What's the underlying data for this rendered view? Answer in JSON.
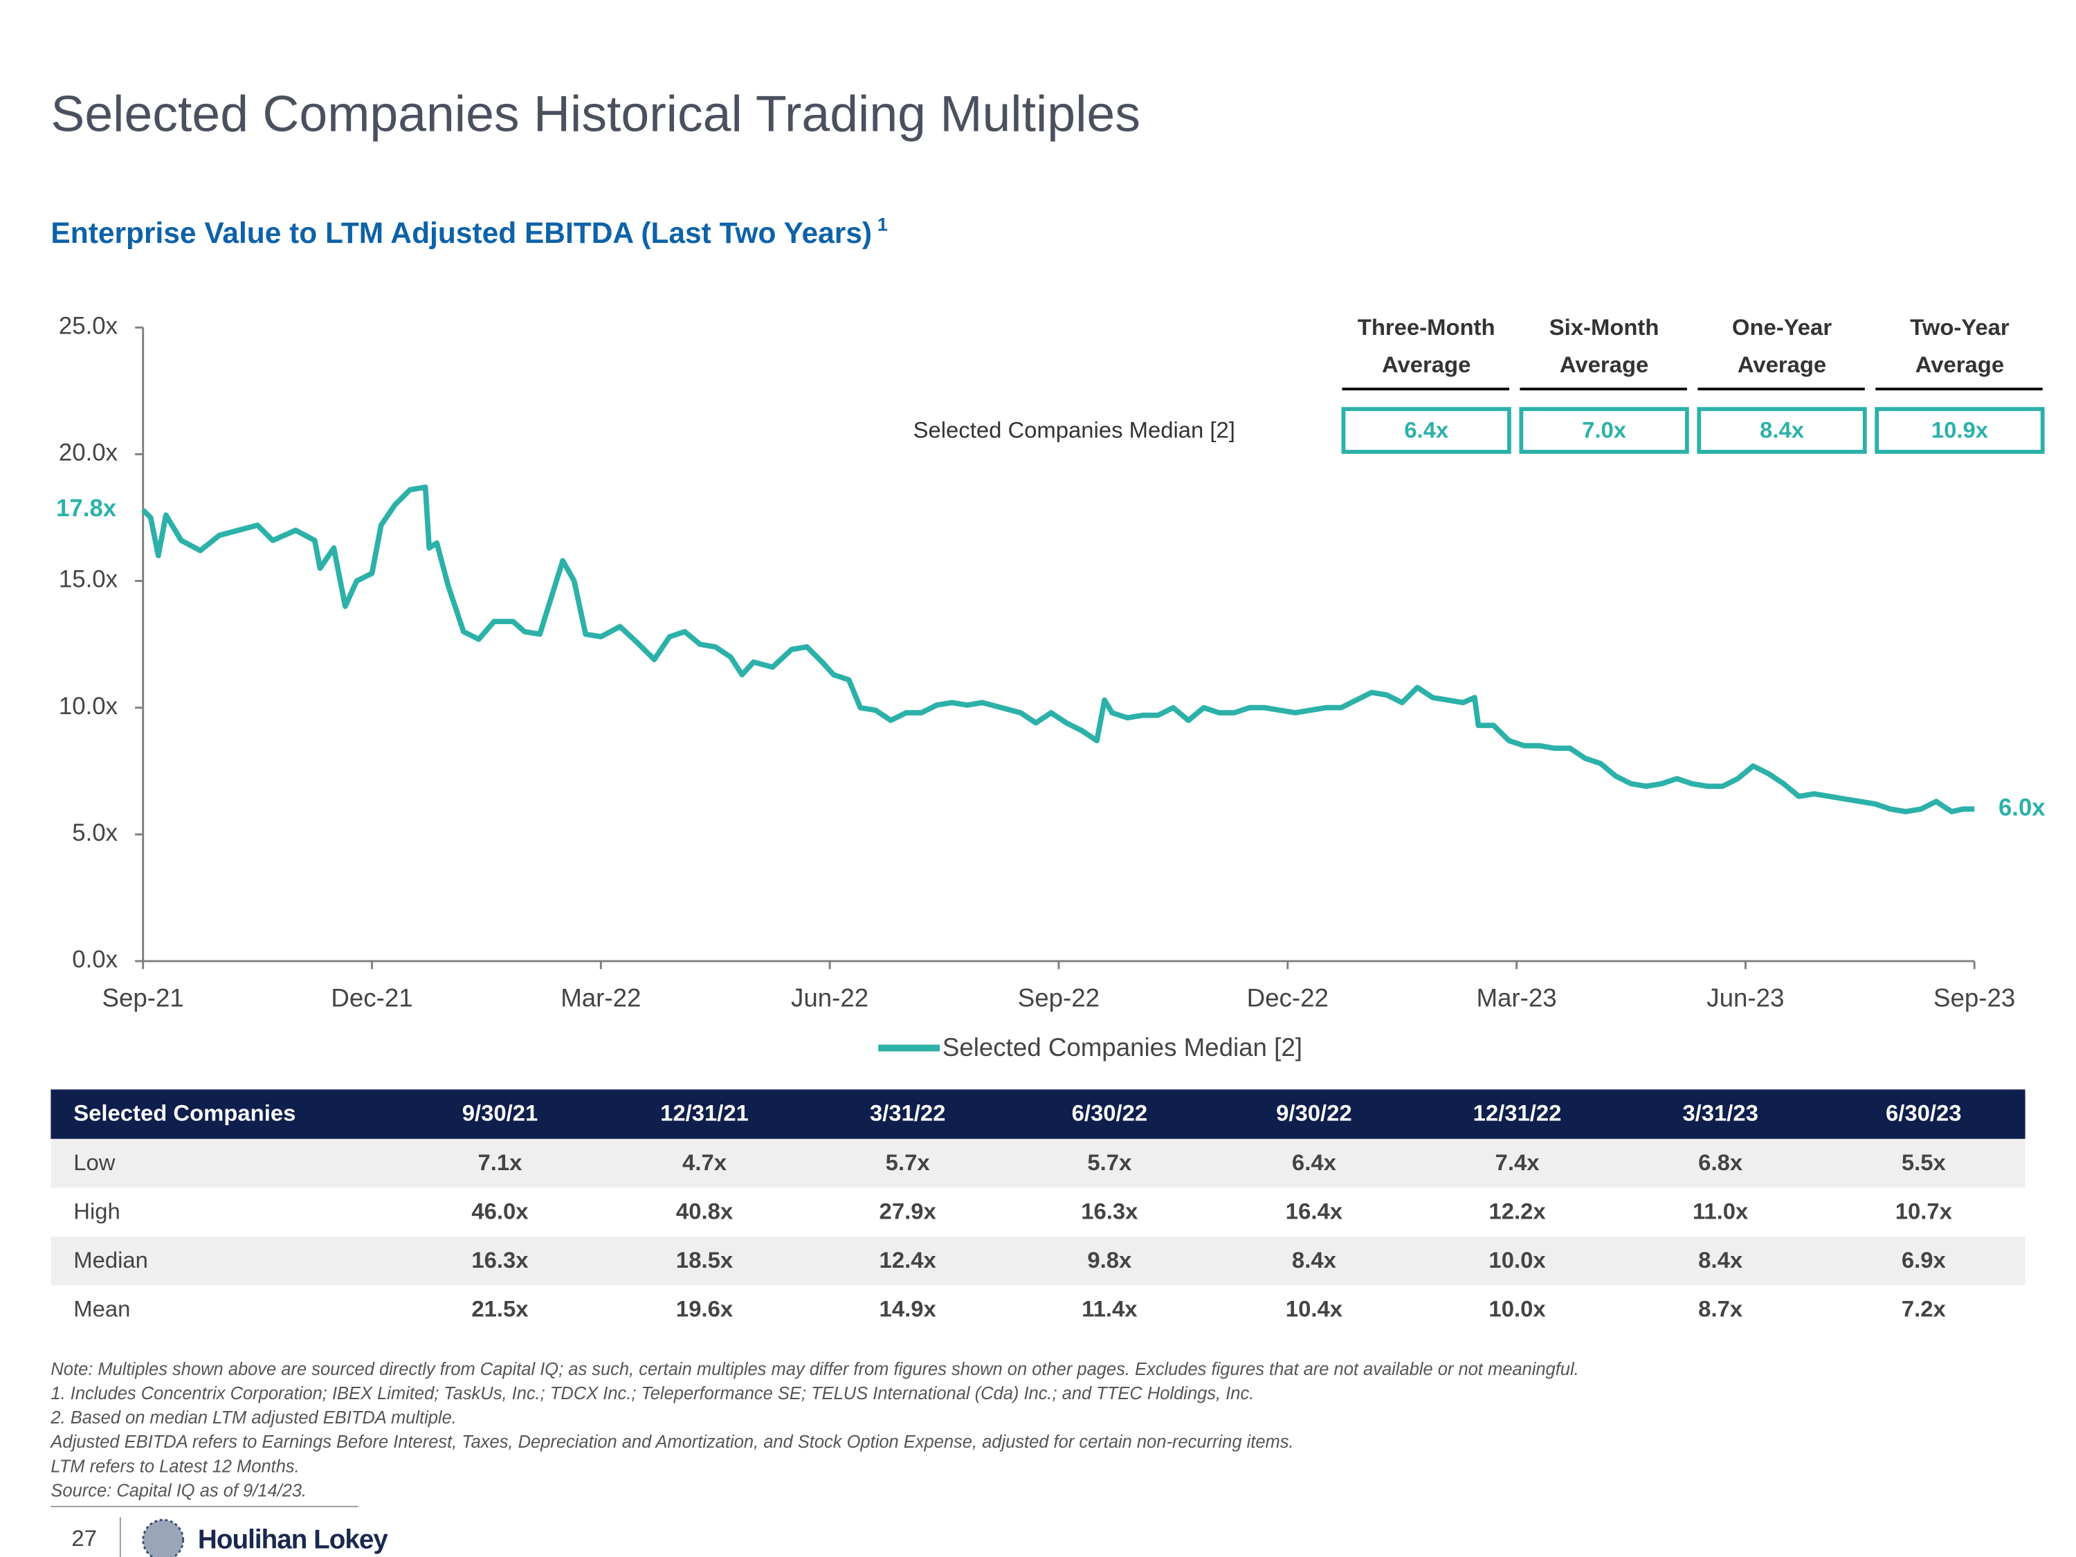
{
  "title": "Selected Companies Historical Trading Multiples",
  "subtitle": "Enterprise Value to LTM Adjusted EBITDA (Last Two Years)",
  "subtitle_note": "1",
  "chart_data": {
    "type": "line",
    "x": [
      0,
      0.1,
      0.2,
      0.3,
      0.5,
      0.75,
      1.0,
      1.25,
      1.5,
      1.7,
      2.0,
      2.25,
      2.32,
      2.5,
      2.65,
      2.8,
      3.0,
      3.12,
      3.3,
      3.5,
      3.7,
      3.75,
      3.85,
      4.0,
      4.2,
      4.4,
      4.6,
      4.85,
      5.0,
      5.2,
      5.5,
      5.65,
      5.8,
      6.0,
      6.25,
      6.5,
      6.7,
      6.9,
      7.1,
      7.3,
      7.5,
      7.7,
      7.85,
      8.0,
      8.25,
      8.5,
      8.7,
      8.9,
      9.05,
      9.25,
      9.4,
      9.6,
      9.8,
      10.0,
      10.2,
      10.4,
      10.6,
      10.8,
      11.0,
      11.25,
      11.5,
      11.7,
      11.9,
      12.1,
      12.3,
      12.5,
      12.6,
      12.7,
      12.9,
      13.1,
      13.3,
      13.5,
      13.7,
      13.9,
      14.1,
      14.3,
      14.5,
      14.7,
      14.9,
      15.1,
      15.3,
      15.5,
      15.7,
      15.9,
      16.1,
      16.3,
      16.5,
      16.7,
      16.9,
      17.1,
      17.3,
      17.45,
      17.5,
      17.7,
      17.9,
      18.1,
      18.3,
      18.5,
      18.7,
      18.9,
      19.1,
      19.3,
      19.5,
      19.7,
      19.9,
      20.1,
      20.3,
      20.5,
      20.7,
      20.9,
      21.1,
      21.3,
      21.5,
      21.7,
      21.9,
      22.1,
      22.3,
      22.5,
      22.7,
      22.9,
      23.1,
      23.3,
      23.5,
      23.7,
      23.85,
      24.0
    ],
    "series": [
      {
        "name": "Selected Companies Median [2]",
        "color": "#2cb1a9",
        "values": [
          17.8,
          17.5,
          16.0,
          17.6,
          16.6,
          16.2,
          16.8,
          17.0,
          17.2,
          16.6,
          17.0,
          16.6,
          15.5,
          16.3,
          14.0,
          15.0,
          15.3,
          17.2,
          18.0,
          18.6,
          18.7,
          16.3,
          16.5,
          14.8,
          13.0,
          12.7,
          13.4,
          13.4,
          13.0,
          12.9,
          15.8,
          15.0,
          12.9,
          12.8,
          13.2,
          12.5,
          11.9,
          12.8,
          13.0,
          12.5,
          12.4,
          12.0,
          11.3,
          11.8,
          11.6,
          12.3,
          12.4,
          11.8,
          11.3,
          11.1,
          10.0,
          9.9,
          9.5,
          9.8,
          9.8,
          10.1,
          10.2,
          10.1,
          10.2,
          10.0,
          9.8,
          9.4,
          9.8,
          9.4,
          9.1,
          8.7,
          10.3,
          9.8,
          9.6,
          9.7,
          9.7,
          10.0,
          9.5,
          10.0,
          9.8,
          9.8,
          10.0,
          10.0,
          9.9,
          9.8,
          9.9,
          10.0,
          10.0,
          10.3,
          10.6,
          10.5,
          10.2,
          10.8,
          10.4,
          10.3,
          10.2,
          10.4,
          9.3,
          9.3,
          8.7,
          8.5,
          8.5,
          8.4,
          8.4,
          8.0,
          7.8,
          7.3,
          7.0,
          6.9,
          7.0,
          7.2,
          7.0,
          6.9,
          6.9,
          7.2,
          7.7,
          7.4,
          7.0,
          6.5,
          6.6,
          6.5,
          6.4,
          6.3,
          6.2,
          6.0,
          5.9,
          6.0,
          6.3,
          5.9,
          6.0,
          6.0
        ]
      }
    ],
    "start_label": "17.8x",
    "end_label": "6.0x",
    "xlim": [
      0,
      24
    ],
    "xticks": [
      {
        "value": 0,
        "label": "Sep-21"
      },
      {
        "value": 3,
        "label": "Dec-21"
      },
      {
        "value": 6,
        "label": "Mar-22"
      },
      {
        "value": 9,
        "label": "Jun-22"
      },
      {
        "value": 12,
        "label": "Sep-22"
      },
      {
        "value": 15,
        "label": "Dec-22"
      },
      {
        "value": 18,
        "label": "Mar-23"
      },
      {
        "value": 21,
        "label": "Jun-23"
      },
      {
        "value": 24,
        "label": "Sep-23"
      }
    ],
    "ylim": [
      0,
      25
    ],
    "yticks": [
      {
        "value": 0,
        "label": "0.0x"
      },
      {
        "value": 5,
        "label": "5.0x"
      },
      {
        "value": 10,
        "label": "10.0x"
      },
      {
        "value": 15,
        "label": "15.0x"
      },
      {
        "value": 20,
        "label": "20.0x"
      },
      {
        "value": 25,
        "label": "25.0x"
      }
    ],
    "grid": false,
    "legend": "bottom"
  },
  "averages": {
    "row_label": "Selected Companies Median [2]",
    "headers": [
      [
        "Three-Month",
        "Average"
      ],
      [
        "Six-Month",
        "Average"
      ],
      [
        "One-Year",
        "Average"
      ],
      [
        "Two-Year",
        "Average"
      ]
    ],
    "values": [
      "6.4x",
      "7.0x",
      "8.4x",
      "10.9x"
    ]
  },
  "table": {
    "header": [
      "Selected Companies",
      "9/30/21",
      "12/31/21",
      "3/31/22",
      "6/30/22",
      "9/30/22",
      "12/31/22",
      "3/31/23",
      "6/30/23"
    ],
    "rows": [
      [
        "Low",
        "7.1x",
        "4.7x",
        "5.7x",
        "5.7x",
        "6.4x",
        "7.4x",
        "6.8x",
        "5.5x"
      ],
      [
        "High",
        "46.0x",
        "40.8x",
        "27.9x",
        "16.3x",
        "16.4x",
        "12.2x",
        "11.0x",
        "10.7x"
      ],
      [
        "Median",
        "16.3x",
        "18.5x",
        "12.4x",
        "9.8x",
        "8.4x",
        "10.0x",
        "8.4x",
        "6.9x"
      ],
      [
        "Mean",
        "21.5x",
        "19.6x",
        "14.9x",
        "11.4x",
        "10.4x",
        "10.0x",
        "8.7x",
        "7.2x"
      ]
    ]
  },
  "notes": [
    "Note: Multiples shown above are sourced directly from Capital IQ; as such, certain multiples may differ from figures shown on other pages. Excludes figures that are not available or not meaningful.",
    "1.  Includes Concentrix Corporation; IBEX Limited; TaskUs, Inc.; TDCX Inc.; Teleperformance SE; TELUS International (Cda) Inc.; and TTEC Holdings, Inc.",
    "2.  Based on median LTM adjusted EBITDA multiple.",
    "Adjusted EBITDA refers to Earnings Before Interest, Taxes, Depreciation and Amortization, and Stock Option Expense, adjusted for certain non-recurring items.",
    "LTM refers to Latest 12 Months.",
    "Source: Capital IQ as of 9/14/23."
  ],
  "footer": {
    "page": "27",
    "logo": "Houlihan Lokey"
  }
}
